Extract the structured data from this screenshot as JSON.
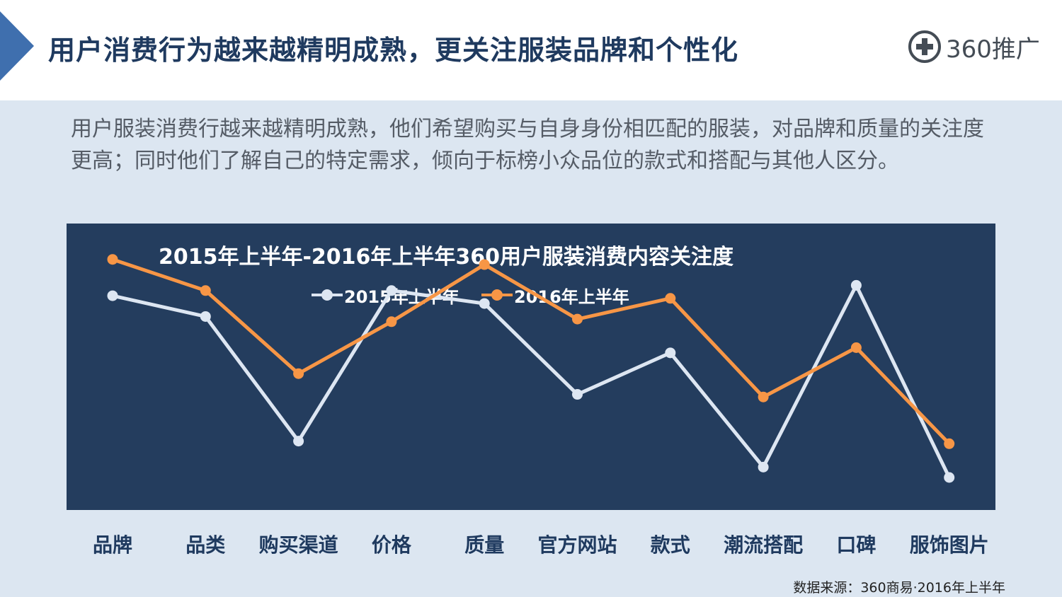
{
  "header": {
    "title": "用户消费行为越来越精明成熟，更关注服装品牌和个性化",
    "logo_text": "360推广",
    "logo_icon": "plus-circle-icon"
  },
  "intro": {
    "text": "用户服装消费行越来越精明成熟，他们希望购买与自身身份相匹配的服装，对品牌和质量的关注度更高；同时他们了解自己的特定需求，倾向于标榜小众品位的款式和搭配与其他人区分。"
  },
  "colors": {
    "header_arrow": "#3f6fae",
    "panel": "#243d5e",
    "series_2015": "#dde6f2",
    "series_2016": "#f79646"
  },
  "chart_data": {
    "type": "line",
    "title": "2015年上半年-2016年上半年360用户服装消费内容关注度",
    "categories": [
      "品牌",
      "品类",
      "购买渠道",
      "价格",
      "质量",
      "官方网站",
      "款式",
      "潮流搭配",
      "口碑",
      "服饰图片"
    ],
    "series": [
      {
        "name": "2015年上半年",
        "values": [
          70,
          62,
          14,
          72,
          67,
          32,
          48,
          4,
          74,
          0
        ]
      },
      {
        "name": "2016年上半年",
        "values": [
          84,
          72,
          40,
          60,
          82,
          61,
          69,
          31,
          50,
          13
        ]
      }
    ],
    "ylim": [
      0,
      100
    ],
    "grid": false,
    "legend": "top-center",
    "value_labels_shown": false
  },
  "footer": {
    "source": "数据来源：360商易·2016年上半年"
  }
}
